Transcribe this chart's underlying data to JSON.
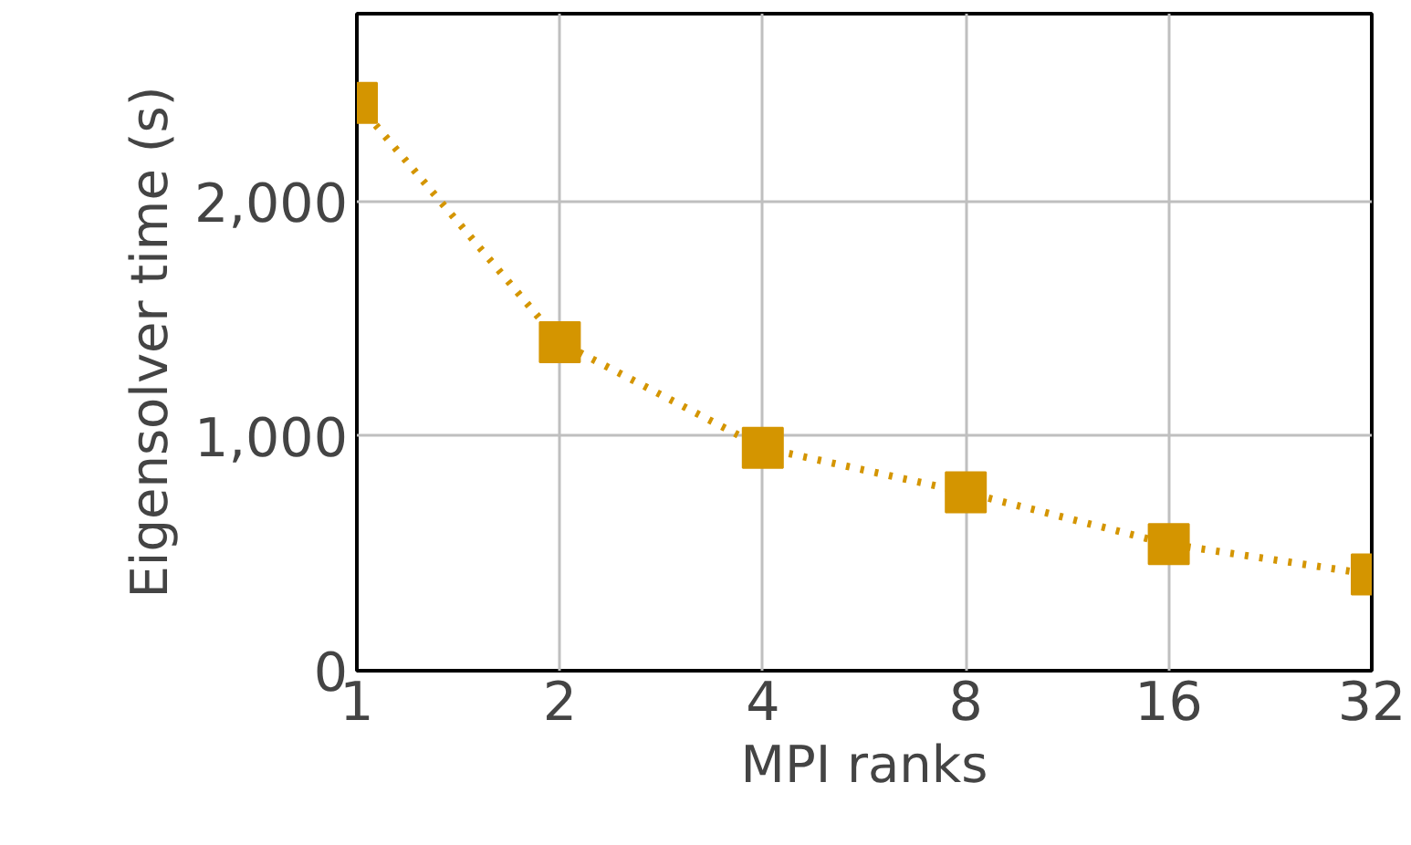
{
  "chart_data": {
    "type": "line",
    "xlabel": "MPI ranks",
    "ylabel": "Eigensolver time (s)",
    "x": [
      1,
      2,
      4,
      8,
      16,
      32
    ],
    "series": [
      {
        "color": "#d49500",
        "values": [
          2420,
          1400,
          950,
          760,
          540,
          410
        ]
      }
    ],
    "log": "x",
    "xlim": [
      1,
      32
    ],
    "xticks": [
      1,
      2,
      4,
      8,
      16,
      32
    ],
    "ylim": [
      0,
      2800
    ],
    "yticks": [
      {
        "value": 0,
        "label": "0"
      },
      {
        "value": 1000,
        "label": "1,000"
      },
      {
        "value": 2000,
        "label": "2,000"
      }
    ],
    "grid": true,
    "marker": "square",
    "line_style": "dotted"
  }
}
